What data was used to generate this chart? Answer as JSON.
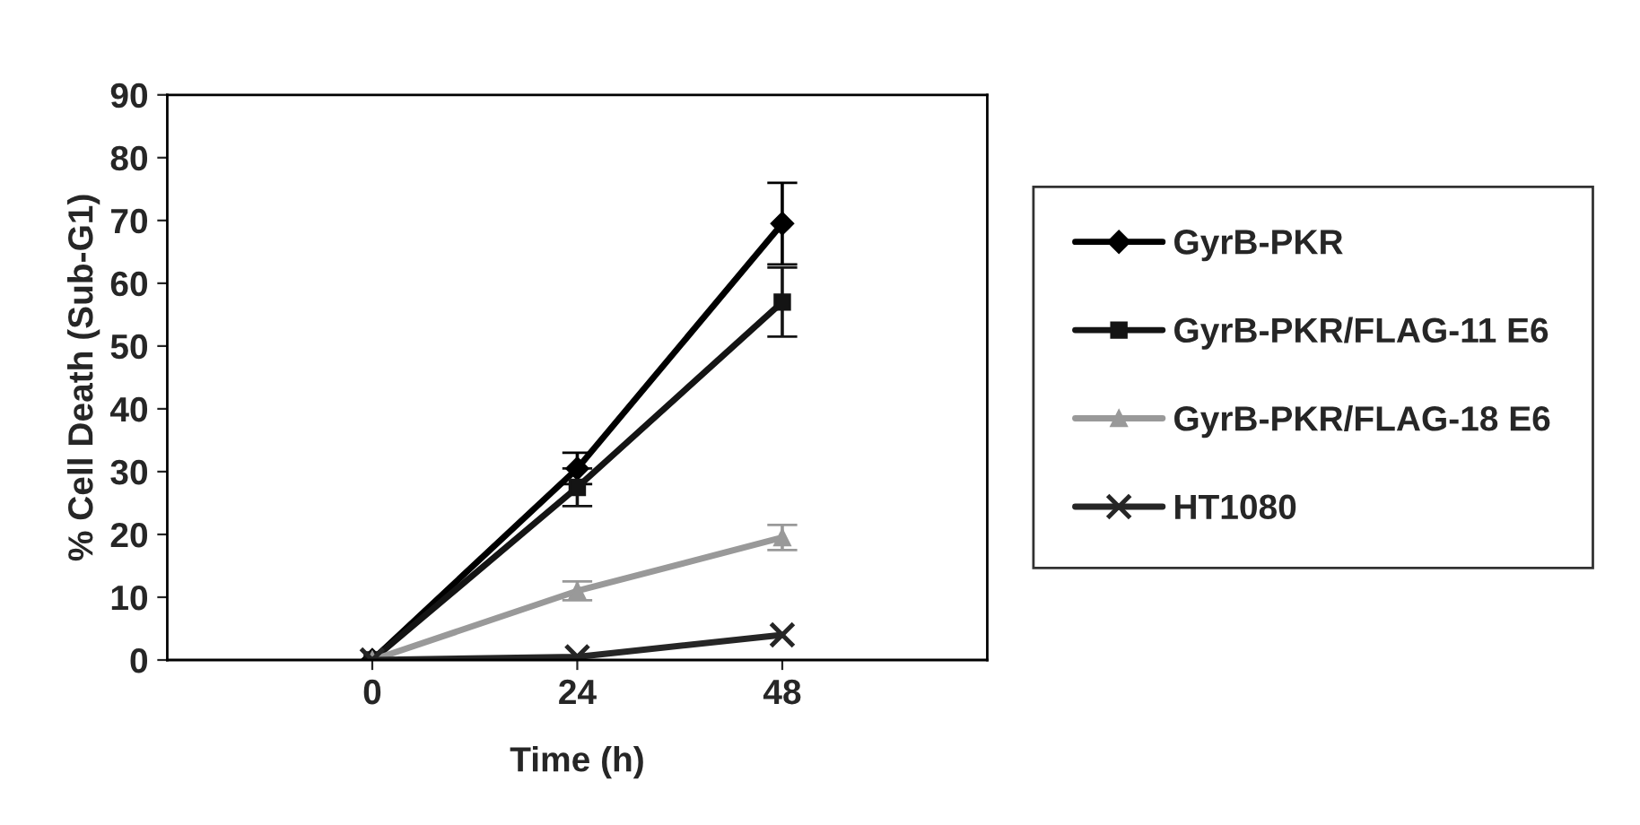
{
  "chart_data": {
    "type": "line",
    "xlabel": "Time (h)",
    "ylabel": "% Cell Death (Sub-G1)",
    "categories": [
      "0",
      "24",
      "48"
    ],
    "series": [
      {
        "name": "GyrB-PKR",
        "color": "#000000",
        "marker": "diamond",
        "values": [
          0,
          30.5,
          69.5
        ],
        "errors": [
          null,
          2.5,
          6.5
        ]
      },
      {
        "name": "GyrB-PKR/FLAG-11 E6",
        "color": "#141414",
        "marker": "square",
        "values": [
          0,
          27.5,
          57
        ],
        "errors": [
          null,
          3,
          5.5
        ]
      },
      {
        "name": "GyrB-PKR/FLAG-18 E6",
        "color": "#999999",
        "marker": "triangle",
        "values": [
          0,
          11,
          19.5
        ],
        "errors": [
          null,
          1.5,
          2
        ]
      },
      {
        "name": "HT1080",
        "color": "#262626",
        "marker": "cross",
        "values": [
          0,
          0.5,
          4
        ]
      }
    ],
    "ylim": [
      0,
      90
    ],
    "yticks": [
      0,
      10,
      20,
      30,
      40,
      50,
      60,
      70,
      80,
      90
    ],
    "grid": false,
    "legend": "right",
    "line_style": "solid"
  }
}
